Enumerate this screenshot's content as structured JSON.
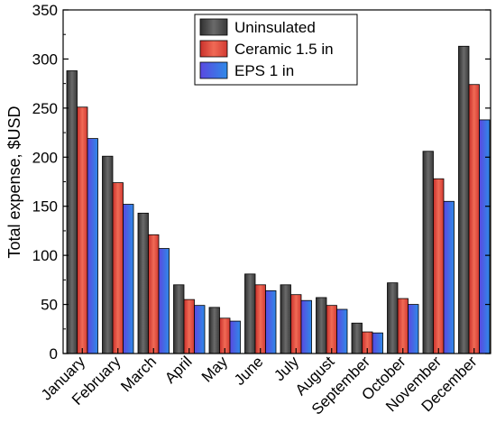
{
  "chart_data": {
    "type": "bar",
    "title": "",
    "xlabel": "",
    "ylabel": "Total expense, $USD",
    "ylim": [
      0,
      350
    ],
    "yticks": [
      0,
      50,
      100,
      150,
      200,
      250,
      300,
      350
    ],
    "grid": false,
    "legend_position": "top-right",
    "categories": [
      "January",
      "February",
      "March",
      "April",
      "May",
      "June",
      "July",
      "August",
      "September",
      "October",
      "November",
      "December"
    ],
    "series": [
      {
        "name": "Uninsulated",
        "color": "#4d4d4d",
        "values": [
          288,
          201,
          143,
          70,
          47,
          81,
          70,
          57,
          31,
          72,
          206,
          313
        ]
      },
      {
        "name": "Ceramic 1.5 in",
        "color": "#e8413c",
        "values": [
          251,
          174,
          121,
          55,
          36,
          70,
          60,
          49,
          22,
          56,
          178,
          274
        ]
      },
      {
        "name": "EPS 1 in",
        "color": "#3f5fe8",
        "values": [
          219,
          152,
          107,
          49,
          33,
          64,
          54,
          45,
          21,
          50,
          155,
          238
        ]
      }
    ]
  }
}
